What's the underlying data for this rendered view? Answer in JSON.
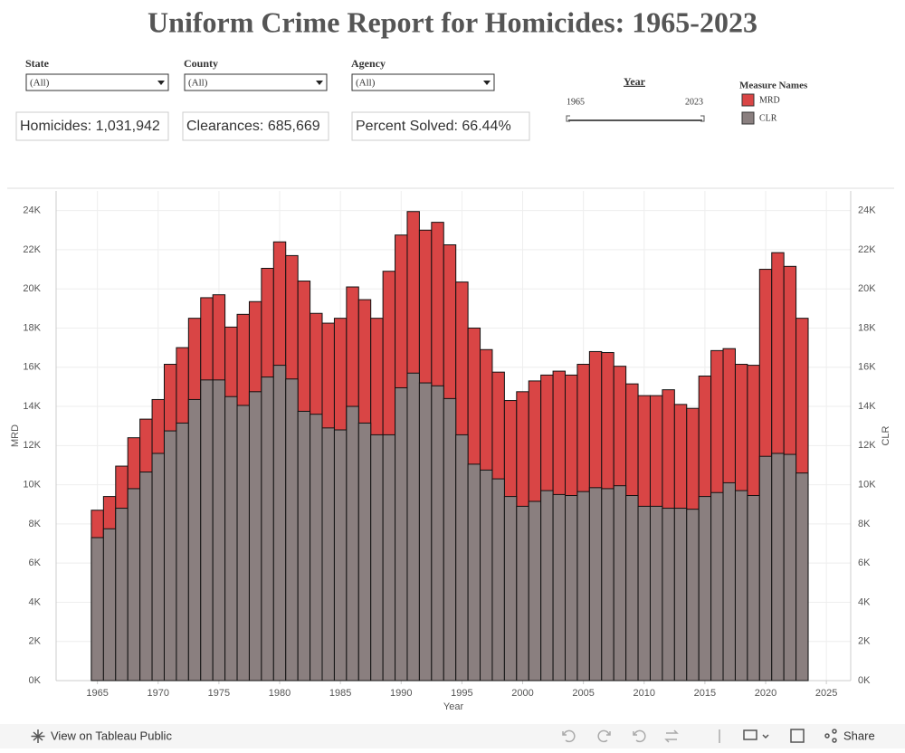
{
  "title": "Uniform Crime Report for Homicides: 1965-2023",
  "filters": [
    {
      "label": "State",
      "value": "(All)"
    },
    {
      "label": "County",
      "value": "(All)"
    },
    {
      "label": "Agency",
      "value": "(All)"
    }
  ],
  "kpis": [
    "Homicides: 1,031,942",
    "Clearances: 685,669",
    "Percent Solved: 66.44%"
  ],
  "year_filter": {
    "label": "Year",
    "min": 1965,
    "max": 2023
  },
  "toolbar": {
    "view": "View on Tableau Public",
    "share": "Share"
  },
  "chart_data": {
    "type": "bar",
    "x_label": "Year",
    "y_label": "MRD",
    "y2_label": "CLR",
    "legend_title": "Measure Names",
    "x": [
      1965,
      1966,
      1967,
      1968,
      1969,
      1970,
      1971,
      1972,
      1973,
      1974,
      1975,
      1976,
      1977,
      1978,
      1979,
      1980,
      1981,
      1982,
      1983,
      1984,
      1985,
      1986,
      1987,
      1988,
      1989,
      1990,
      1991,
      1992,
      1993,
      1994,
      1995,
      1996,
      1997,
      1998,
      1999,
      2000,
      2001,
      2002,
      2003,
      2004,
      2005,
      2006,
      2007,
      2008,
      2009,
      2010,
      2011,
      2012,
      2013,
      2014,
      2015,
      2016,
      2017,
      2018,
      2019,
      2020,
      2021,
      2022,
      2023
    ],
    "series": [
      {
        "name": "MRD",
        "color": "#d94545",
        "axis": "y",
        "values": [
          8700,
          9400,
          10950,
          12400,
          13350,
          14350,
          16150,
          17000,
          18500,
          19550,
          19700,
          18050,
          18700,
          19350,
          21050,
          22400,
          21700,
          20400,
          18750,
          18250,
          18500,
          20100,
          19450,
          18500,
          20900,
          22750,
          23950,
          23000,
          23400,
          22250,
          20350,
          18000,
          16900,
          15750,
          14300,
          14750,
          15300,
          15600,
          15800,
          15600,
          16150,
          16800,
          16750,
          16050,
          15150,
          14550,
          14550,
          14850,
          14100,
          13900,
          15550,
          16850,
          16950,
          16150,
          16100,
          21000,
          21850,
          21150,
          18500
        ]
      },
      {
        "name": "CLR",
        "color": "#8a7f7f",
        "axis": "y2",
        "values": [
          7300,
          7750,
          8800,
          9800,
          10650,
          11600,
          12750,
          13150,
          14350,
          15350,
          15350,
          14500,
          14050,
          14750,
          15500,
          16100,
          15400,
          13750,
          13600,
          12900,
          12800,
          14000,
          13150,
          12550,
          12550,
          14950,
          15700,
          15200,
          15050,
          14400,
          12550,
          11050,
          10750,
          10300,
          9400,
          8900,
          9150,
          9700,
          9500,
          9450,
          9650,
          9850,
          9800,
          9950,
          9450,
          8900,
          8900,
          8800,
          8800,
          8750,
          9400,
          9600,
          10100,
          9700,
          9450,
          11450,
          11600,
          11550,
          10600
        ]
      }
    ],
    "xlim": [
      1961.6,
      2027
    ],
    "xticks": [
      1965,
      1970,
      1975,
      1980,
      1985,
      1990,
      1995,
      2000,
      2005,
      2010,
      2015,
      2020,
      2025
    ],
    "ylim": [
      0,
      25000
    ],
    "yticks": [
      {
        "value": 0,
        "label": "0K"
      },
      {
        "value": 2000,
        "label": "2K"
      },
      {
        "value": 4000,
        "label": "4K"
      },
      {
        "value": 6000,
        "label": "6K"
      },
      {
        "value": 8000,
        "label": "8K"
      },
      {
        "value": 10000,
        "label": "10K"
      },
      {
        "value": 12000,
        "label": "12K"
      },
      {
        "value": 14000,
        "label": "14K"
      },
      {
        "value": 16000,
        "label": "16K"
      },
      {
        "value": 18000,
        "label": "18K"
      },
      {
        "value": 20000,
        "label": "20K"
      },
      {
        "value": 22000,
        "label": "22K"
      },
      {
        "value": 24000,
        "label": "24K"
      }
    ],
    "y2lim": [
      0,
      25000
    ],
    "y2ticks": [
      {
        "value": 0,
        "label": "0K"
      },
      {
        "value": 2000,
        "label": "2K"
      },
      {
        "value": 4000,
        "label": "4K"
      },
      {
        "value": 6000,
        "label": "6K"
      },
      {
        "value": 8000,
        "label": "8K"
      },
      {
        "value": 10000,
        "label": "10K"
      },
      {
        "value": 12000,
        "label": "12K"
      },
      {
        "value": 14000,
        "label": "14K"
      },
      {
        "value": 16000,
        "label": "16K"
      },
      {
        "value": 18000,
        "label": "18K"
      },
      {
        "value": 20000,
        "label": "20K"
      },
      {
        "value": 22000,
        "label": "22K"
      },
      {
        "value": 24000,
        "label": "24K"
      }
    ],
    "grid": true
  }
}
